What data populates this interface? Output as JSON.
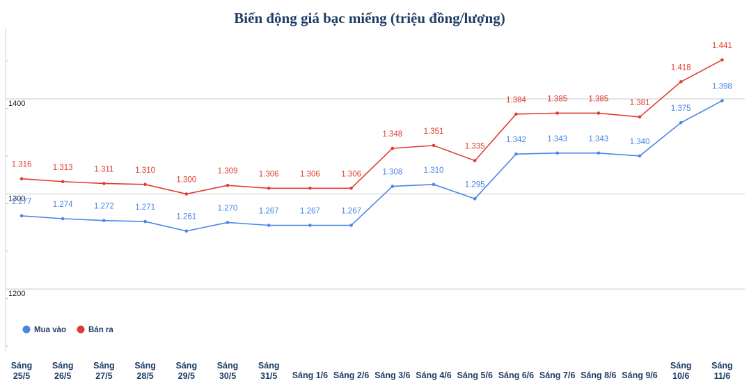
{
  "chart_data": {
    "type": "line",
    "title": "Biến động giá bạc miếng (triệu đồng/lượng)",
    "categories": [
      "Sáng\n25/5",
      "Sáng\n26/5",
      "Sáng\n27/5",
      "Sáng\n28/5",
      "Sáng\n29/5",
      "Sáng\n30/5",
      "Sáng\n31/5",
      "Sáng 1/6",
      "Sáng 2/6",
      "Sáng 3/6",
      "Sáng 4/6",
      "Sáng 5/6",
      "Sáng 6/6",
      "Sáng 7/6",
      "Sáng 8/6",
      "Sáng 9/6",
      "Sáng\n10/6",
      "Sáng\n11/6"
    ],
    "series": [
      {
        "name": "Mua vào",
        "color": "#4a86e8",
        "values": [
          1277,
          1274,
          1272,
          1271,
          1261,
          1270,
          1267,
          1267,
          1267,
          1308,
          1310,
          1295,
          1342,
          1343,
          1343,
          1340,
          1375,
          1398
        ],
        "labels": [
          "1.277",
          "1.274",
          "1.272",
          "1.271",
          "1.261",
          "1.270",
          "1.267",
          "1.267",
          "1.267",
          "1.308",
          "1.310",
          "1.295",
          "1.342",
          "1.343",
          "1.343",
          "1.340",
          "1.375",
          "1.398"
        ]
      },
      {
        "name": "Bán ra",
        "color": "#e03c31",
        "values": [
          1316,
          1313,
          1311,
          1310,
          1300,
          1309,
          1306,
          1306,
          1306,
          1348,
          1351,
          1335,
          1384,
          1385,
          1385,
          1381,
          1418,
          1441
        ],
        "labels": [
          "1.316",
          "1.313",
          "1.311",
          "1.310",
          "1.300",
          "1.309",
          "1.306",
          "1.306",
          "1.306",
          "1.348",
          "1.351",
          "1.335",
          "1.384",
          "1.385",
          "1.385",
          "1.381",
          "1.418",
          "1.441"
        ]
      }
    ],
    "yticks": [
      1200,
      1300,
      1400
    ],
    "ylim": [
      1135,
      1475
    ],
    "grid": true,
    "legend_position": "bottom-left"
  }
}
